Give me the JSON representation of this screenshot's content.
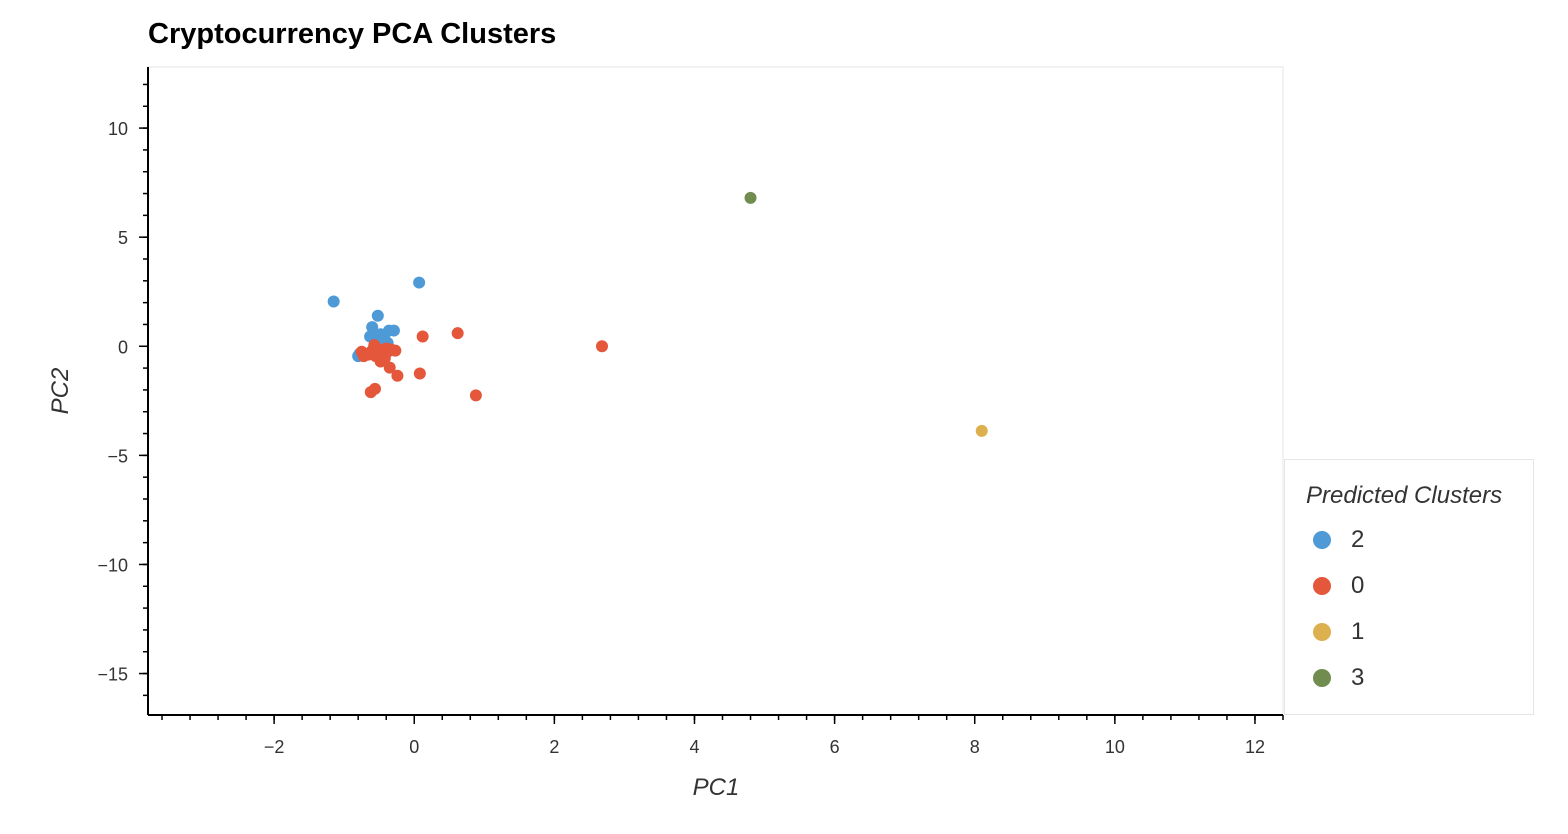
{
  "chart_data": {
    "type": "scatter",
    "title": "Cryptocurrency PCA Clusters",
    "xlabel": "PC1",
    "ylabel": "PC2",
    "xlim": [
      -3.8,
      12.4
    ],
    "ylim": [
      -16.9,
      12.8
    ],
    "x_ticks": [
      -2,
      0,
      2,
      4,
      6,
      8,
      10,
      12
    ],
    "y_ticks": [
      10,
      5,
      0,
      -5,
      -10,
      -15
    ],
    "x_tick_labels": [
      "−2",
      "0",
      "2",
      "4",
      "6",
      "8",
      "10",
      "12"
    ],
    "y_tick_labels": [
      "10",
      "5",
      "0",
      "−5",
      "−10",
      "−15"
    ],
    "grid": false,
    "legend_title": "Predicted Clusters",
    "legend_position": "bottom-right",
    "series": [
      {
        "name": "2",
        "color": "#4d9ad6",
        "points": [
          [
            -1.15,
            2.05
          ],
          [
            0.07,
            2.92
          ],
          [
            -0.52,
            1.4
          ],
          [
            -0.6,
            0.88
          ],
          [
            -0.63,
            0.45
          ],
          [
            -0.48,
            0.55
          ],
          [
            -0.36,
            0.72
          ],
          [
            -0.29,
            0.72
          ],
          [
            -0.42,
            0.3
          ],
          [
            -0.38,
            0.15
          ],
          [
            -0.5,
            0.2
          ],
          [
            -0.8,
            -0.45
          ],
          [
            -0.78,
            -0.35
          ]
        ]
      },
      {
        "name": "0",
        "color": "#e4573a",
        "points": [
          [
            -0.75,
            -0.25
          ],
          [
            -0.72,
            -0.45
          ],
          [
            -0.65,
            -0.38
          ],
          [
            -0.6,
            -0.2
          ],
          [
            -0.57,
            0.05
          ],
          [
            -0.55,
            -0.45
          ],
          [
            -0.52,
            -0.3
          ],
          [
            -0.5,
            -0.15
          ],
          [
            -0.48,
            -0.7
          ],
          [
            -0.45,
            -0.4
          ],
          [
            -0.42,
            -0.55
          ],
          [
            -0.4,
            -0.1
          ],
          [
            -0.38,
            -0.25
          ],
          [
            -0.35,
            -0.98
          ],
          [
            -0.33,
            -0.15
          ],
          [
            -0.27,
            -0.2
          ],
          [
            -0.24,
            -1.35
          ],
          [
            -0.62,
            -2.1
          ],
          [
            -0.56,
            -1.95
          ],
          [
            0.08,
            -1.25
          ],
          [
            0.12,
            0.45
          ],
          [
            0.62,
            0.6
          ],
          [
            0.88,
            -2.25
          ],
          [
            2.68,
            0.0
          ]
        ]
      },
      {
        "name": "1",
        "color": "#ddb04f",
        "points": [
          [
            8.1,
            -3.88
          ]
        ]
      },
      {
        "name": "3",
        "color": "#708d4f",
        "points": [
          [
            4.8,
            6.8
          ]
        ]
      }
    ]
  }
}
